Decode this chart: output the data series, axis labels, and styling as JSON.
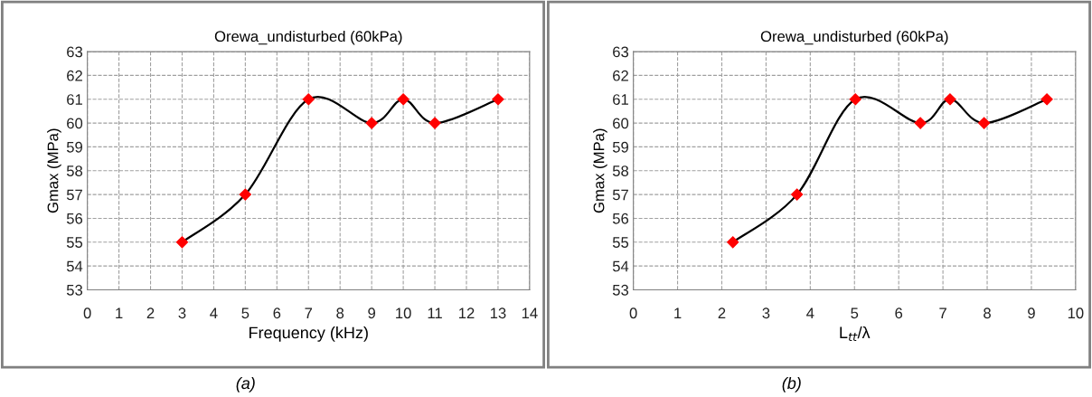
{
  "chart_data": [
    {
      "type": "line",
      "title": "Orewa_undisturbed (60kPa)",
      "xlabel": "Frequency (kHz)",
      "ylabel": "Gmax (MPa)",
      "annotations": [
        "(a)"
      ],
      "series": [
        {
          "color": "#000000",
          "x": [
            3,
            5,
            7,
            9,
            10,
            11,
            13
          ],
          "values": [
            55,
            57,
            61,
            60,
            61,
            60,
            61
          ]
        }
      ],
      "marker": "diamond",
      "grid": true,
      "xlim": [
        0,
        14
      ],
      "xticks": [
        0,
        1,
        2,
        3,
        4,
        5,
        6,
        7,
        8,
        9,
        10,
        11,
        12,
        13,
        14
      ],
      "ylim": [
        53,
        63
      ],
      "yticks": [
        53,
        54,
        55,
        56,
        57,
        58,
        59,
        60,
        61,
        62,
        63
      ]
    },
    {
      "type": "line",
      "title": "Orewa_undisturbed (60kPa)",
      "xlabel": "L$_{tt}$/λ",
      "ylabel": "Gmax (MPa)",
      "annotations": [
        "(b)"
      ],
      "series": [
        {
          "color": "#000000",
          "x": [
            2.25,
            3.7,
            5.02,
            6.49,
            7.16,
            7.93,
            9.35
          ],
          "values": [
            55,
            57,
            61,
            60,
            61,
            60,
            61
          ]
        }
      ],
      "marker": "diamond",
      "grid": true,
      "xlim": [
        0,
        10
      ],
      "xticks": [
        0,
        1,
        2,
        3,
        4,
        5,
        6,
        7,
        8,
        9,
        10
      ],
      "ylim": [
        53,
        63
      ],
      "yticks": [
        53,
        54,
        55,
        56,
        57,
        58,
        59,
        60,
        61,
        62,
        63
      ]
    }
  ]
}
